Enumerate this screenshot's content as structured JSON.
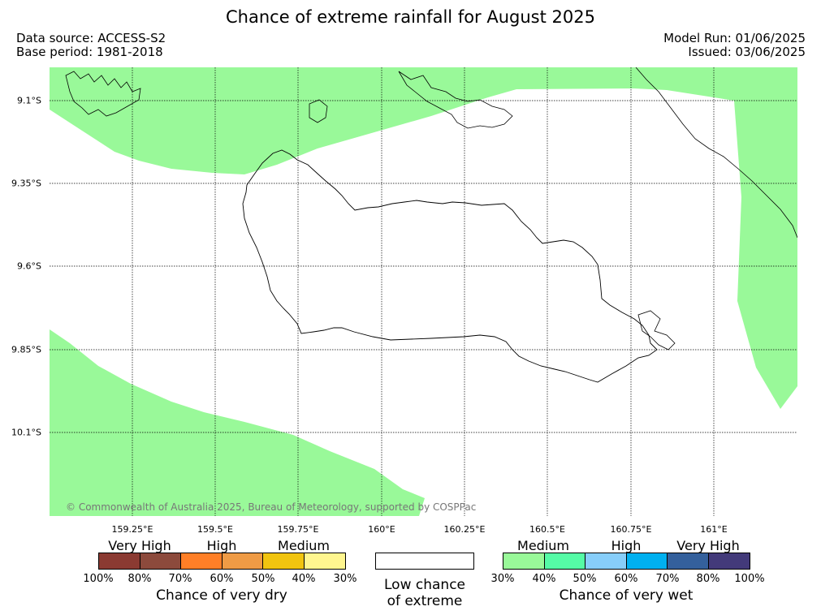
{
  "title": "Chance of extreme rainfall for August 2025",
  "meta": {
    "data_source": "Data source: ACCESS-S2",
    "base_period": "Base period: 1981-2018",
    "model_run": "Model Run: 01/06/2025",
    "issued": "Issued: 03/06/2025"
  },
  "map": {
    "lat_labels": [
      "9.1°S",
      "9.35°S",
      "9.6°S",
      "9.85°S",
      "10.1°S"
    ],
    "lon_labels": [
      "159.25°E",
      "159.5°E",
      "159.75°E",
      "160°E",
      "160.25°E",
      "160.5°E",
      "160.75°E",
      "161°E"
    ],
    "copyright": "© Commonwealth of Australia 2025, Bureau of Meteorology, supported by COSPPac",
    "shading_color": "#99f999",
    "shading_category": "Medium chance of very wet (30%-40%)"
  },
  "legend": {
    "dry": {
      "headers": [
        "Very High",
        "High",
        "Medium"
      ],
      "colors": [
        "#8b3a32",
        "#8c4a3c",
        "#ff7f27",
        "#ef9b45",
        "#f1c40f",
        "#fff68f"
      ],
      "ticks": [
        "100%",
        "80%",
        "70%",
        "60%",
        "50%",
        "40%",
        "30%"
      ],
      "caption": "Chance of very dry"
    },
    "neutral": {
      "line1": "Low chance",
      "line2": "of extreme"
    },
    "wet": {
      "headers": [
        "Medium",
        "High",
        "Very High"
      ],
      "colors": [
        "#99f999",
        "#55fba6",
        "#87cefa",
        "#00b0f0",
        "#34609c",
        "#433a7a"
      ],
      "ticks": [
        "30%",
        "40%",
        "50%",
        "60%",
        "70%",
        "80%",
        "100%"
      ],
      "caption": "Chance of very wet"
    }
  }
}
